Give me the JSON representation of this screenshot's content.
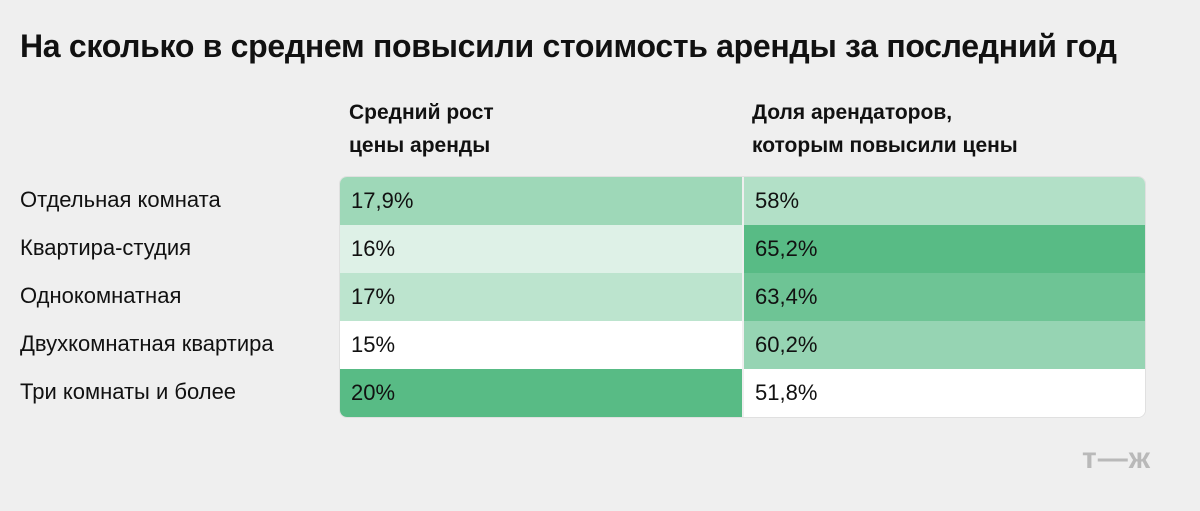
{
  "title": "На сколько в среднем повысили стоимость аренды за последний год",
  "logo": "т—ж",
  "chart_data": {
    "type": "table",
    "title": "На сколько в среднем повысили стоимость аренды за последний год",
    "columns": [
      {
        "header_lines": [
          "Средний рост",
          "цены аренды"
        ]
      },
      {
        "header_lines": [
          "Доля арендаторов,",
          "которым повысили цены"
        ]
      }
    ],
    "rows": [
      {
        "label": "Отдельная комната",
        "values": [
          17.9,
          58.0
        ],
        "display": [
          "17,9%",
          "58%"
        ]
      },
      {
        "label": "Квартира-студия",
        "values": [
          16.0,
          65.2
        ],
        "display": [
          "16%",
          "65,2%"
        ]
      },
      {
        "label": "Однокомнатная",
        "values": [
          17.0,
          63.4
        ],
        "display": [
          "17%",
          "63,4%"
        ]
      },
      {
        "label": "Двухкомнатная квартира",
        "values": [
          15.0,
          60.2
        ],
        "display": [
          "15%",
          "60,2%"
        ]
      },
      {
        "label": "Три комнаты и более",
        "values": [
          20.0,
          51.8
        ],
        "display": [
          "20%",
          "51,8%"
        ]
      }
    ],
    "color_low": "#ffffff",
    "color_high": "#58bb85"
  }
}
